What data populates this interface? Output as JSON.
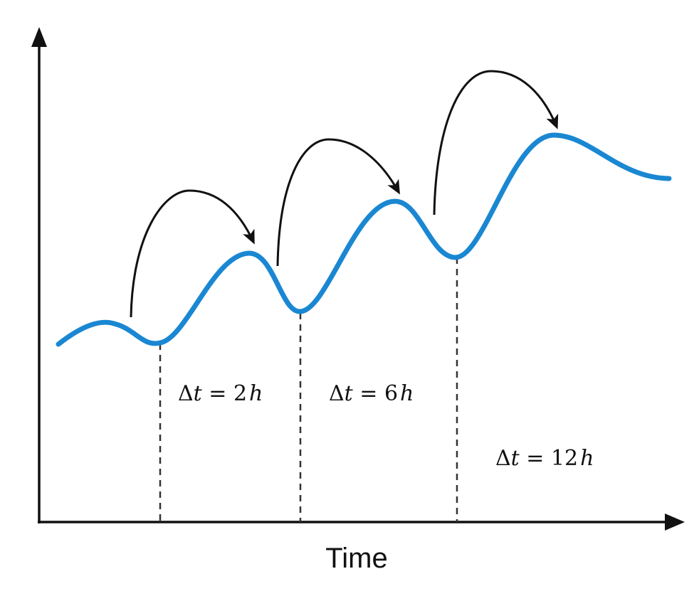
{
  "diagram": {
    "x_axis_label": "Time",
    "intervals": [
      {
        "label_symbol": "Δ",
        "label_var": "t",
        "label_eq": " = ",
        "label_num": "2",
        "label_unit": "h"
      },
      {
        "label_symbol": "Δ",
        "label_var": "t",
        "label_eq": " = ",
        "label_num": "6",
        "label_unit": "h"
      },
      {
        "label_symbol": "Δ",
        "label_var": "t",
        "label_eq": " = ",
        "label_num": "12",
        "label_unit": "h"
      }
    ],
    "colors": {
      "curve": "#1a87d2",
      "axes": "#111111",
      "arrows": "#111111",
      "guides": "#333333"
    }
  }
}
